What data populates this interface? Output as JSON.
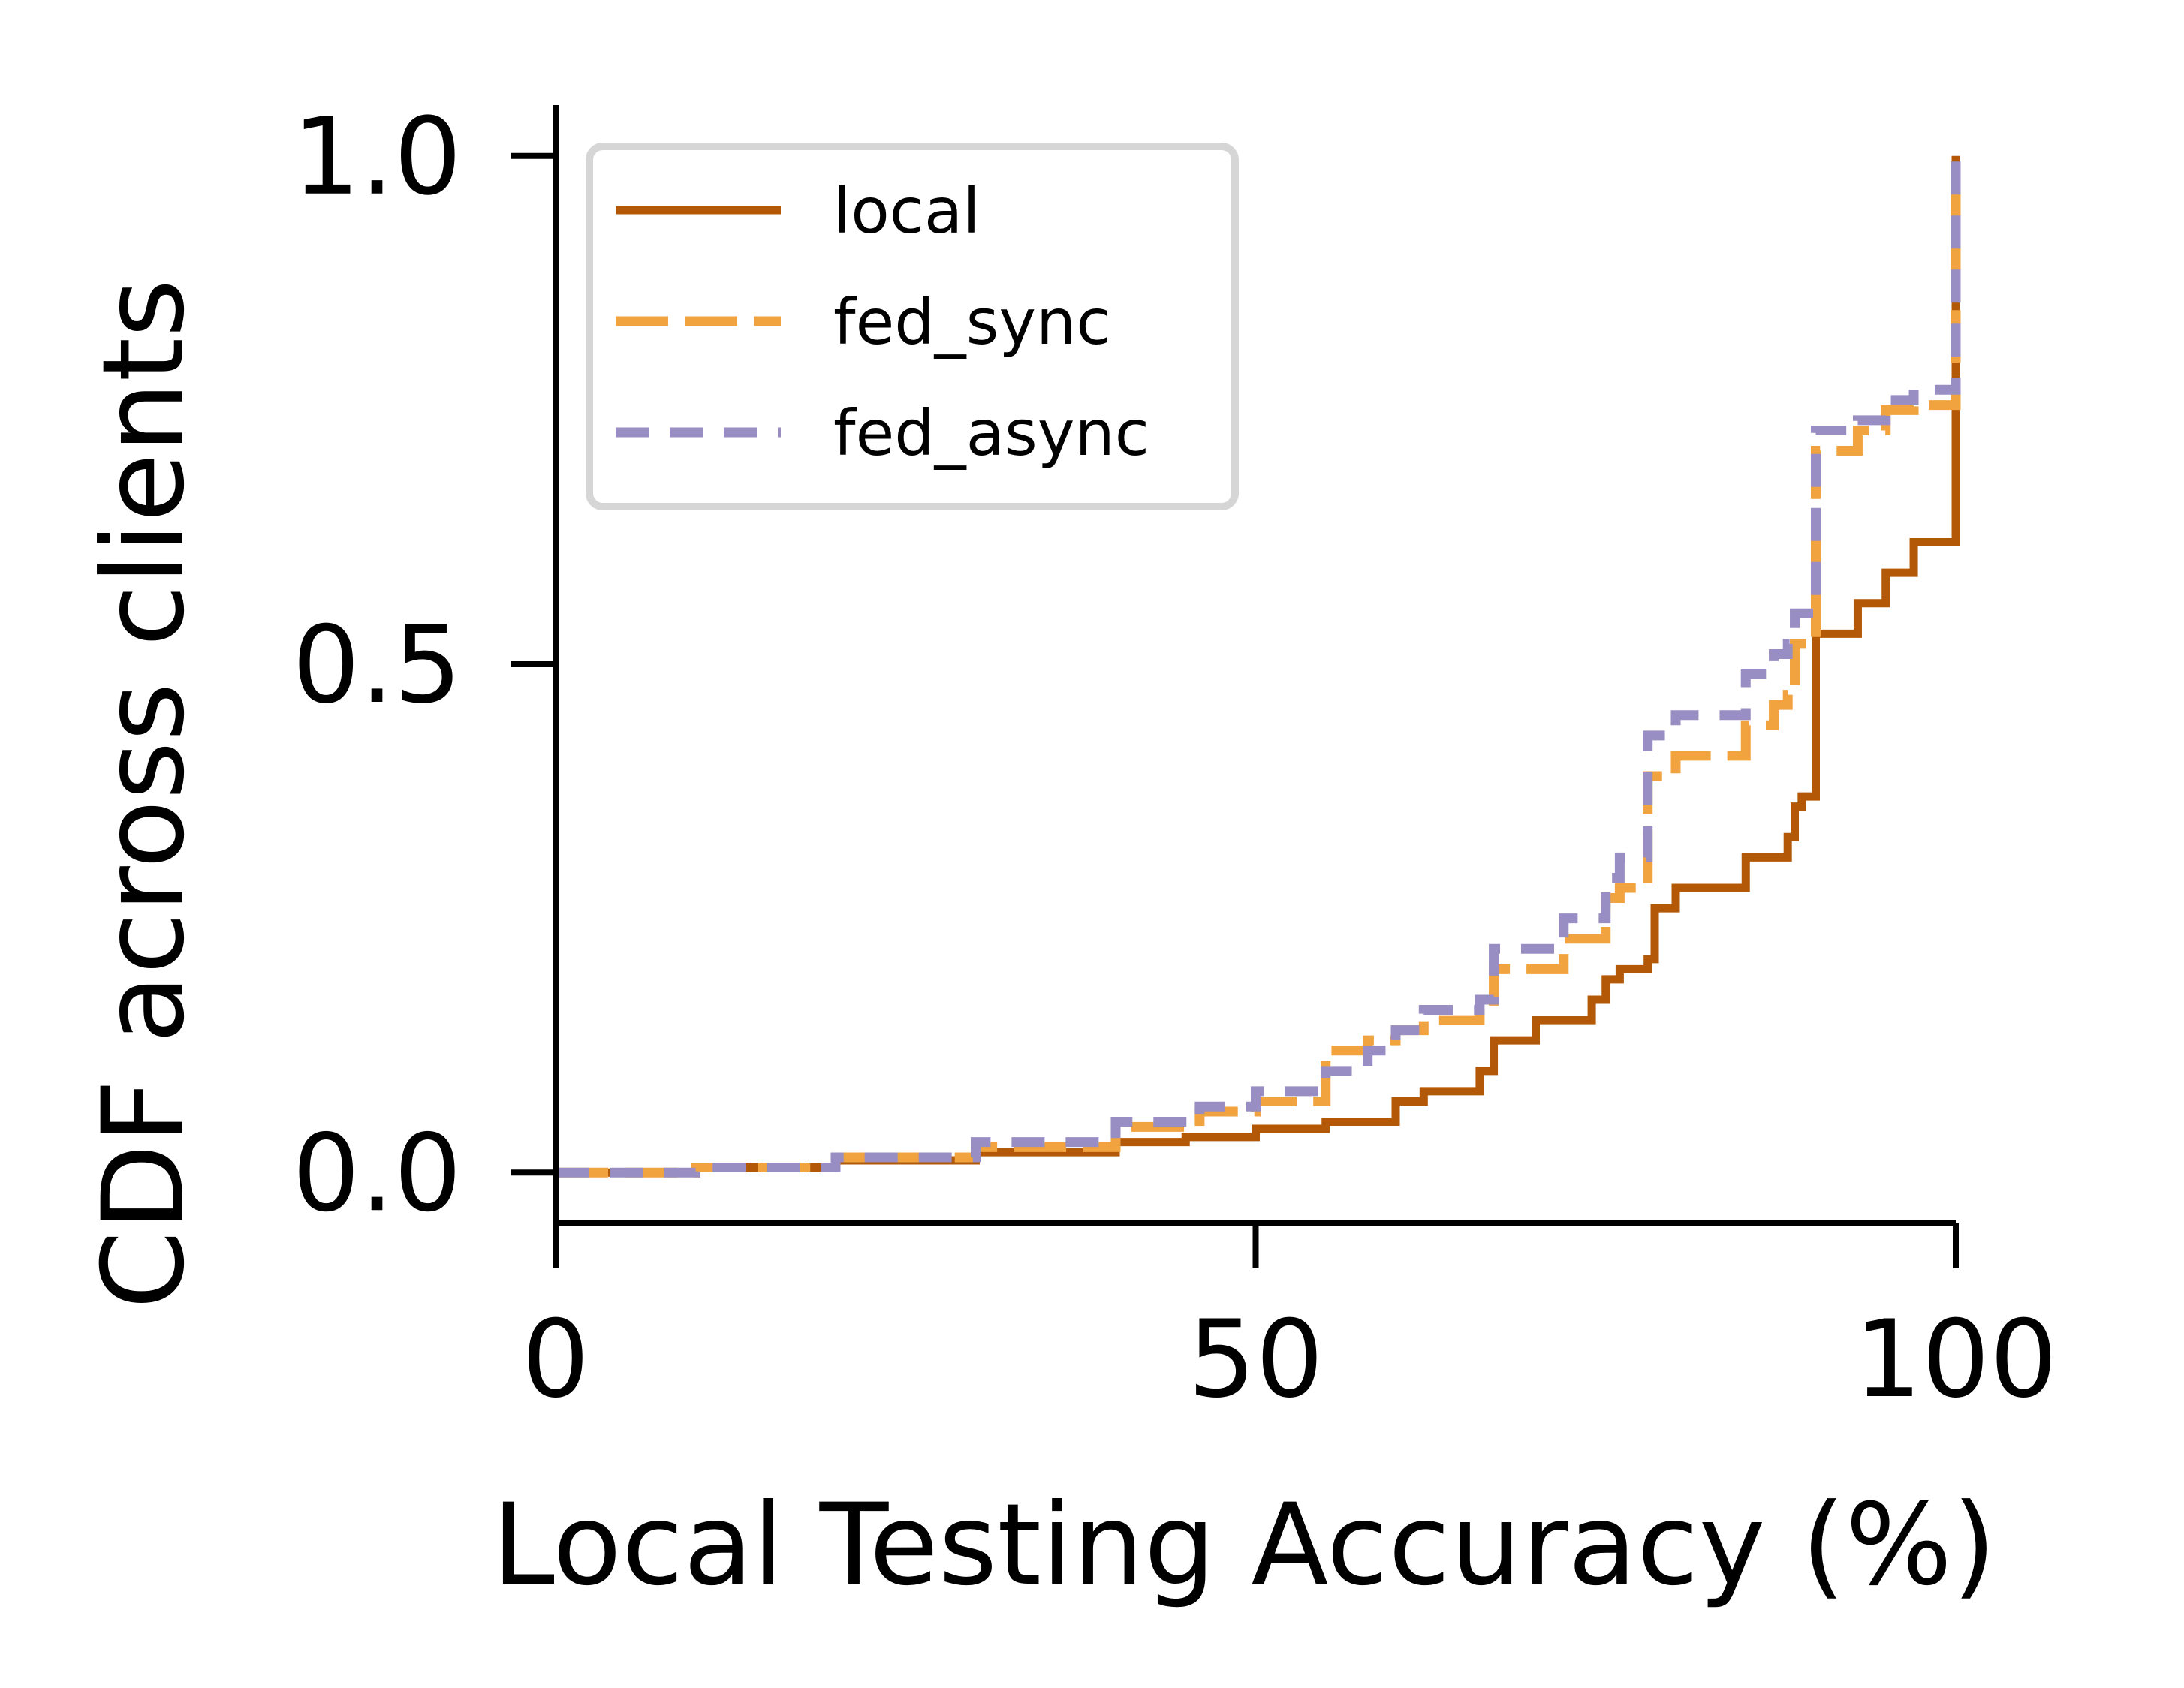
{
  "chart_data": {
    "type": "line",
    "xlabel": "Local Testing Accuracy (%)",
    "ylabel": "CDF across clients",
    "xlim": [
      0,
      100
    ],
    "ylim": [
      -0.05,
      1.05
    ],
    "xticks": [
      0,
      50,
      100
    ],
    "xtick_labels": [
      "0",
      "50",
      "100"
    ],
    "yticks": [
      0.0,
      0.5,
      1.0
    ],
    "ytick_labels": [
      "0.0",
      "0.5",
      "1.0"
    ],
    "grid": false,
    "legend_position": "top-left",
    "series": [
      {
        "name": "local",
        "color": "#b35806",
        "dash": "solid",
        "x": [
          0,
          10,
          20,
          30,
          40,
          45,
          50,
          55,
          60,
          62,
          66,
          67,
          70,
          74,
          75,
          76,
          78,
          78.5,
          80,
          85,
          88,
          88.5,
          89,
          90,
          93,
          95,
          97,
          100,
          100
        ],
        "y": [
          0,
          0.005,
          0.012,
          0.02,
          0.03,
          0.035,
          0.043,
          0.05,
          0.07,
          0.08,
          0.1,
          0.13,
          0.15,
          0.17,
          0.19,
          0.2,
          0.21,
          0.26,
          0.28,
          0.31,
          0.33,
          0.36,
          0.37,
          0.53,
          0.56,
          0.59,
          0.62,
          0.62,
          1.0
        ]
      },
      {
        "name": "fed_sync",
        "color": "#f1a340",
        "dash": "long-dash",
        "x": [
          0,
          10,
          20,
          30,
          40,
          46,
          50,
          55,
          58,
          60,
          62,
          66,
          67,
          72,
          75,
          76,
          78,
          80,
          85,
          87,
          88,
          88.5,
          89,
          90,
          93,
          95,
          97,
          100,
          100
        ],
        "y": [
          0,
          0.005,
          0.015,
          0.025,
          0.045,
          0.06,
          0.07,
          0.12,
          0.13,
          0.14,
          0.15,
          0.16,
          0.2,
          0.23,
          0.27,
          0.28,
          0.39,
          0.41,
          0.44,
          0.46,
          0.47,
          0.52,
          0.52,
          0.71,
          0.73,
          0.75,
          0.755,
          0.77,
          1.0
        ]
      },
      {
        "name": "fed_async",
        "color": "#998ec3",
        "dash": "dashed",
        "x": [
          0,
          10,
          20,
          30,
          40,
          46,
          50,
          55,
          58,
          60,
          62,
          66,
          67,
          72,
          75,
          76,
          78,
          80,
          85,
          87,
          88,
          88.5,
          89,
          90,
          93,
          95,
          97,
          100,
          100
        ],
        "y": [
          0,
          0.005,
          0.015,
          0.03,
          0.05,
          0.065,
          0.08,
          0.1,
          0.12,
          0.14,
          0.16,
          0.17,
          0.22,
          0.25,
          0.29,
          0.31,
          0.43,
          0.45,
          0.49,
          0.51,
          0.52,
          0.55,
          0.55,
          0.73,
          0.74,
          0.76,
          0.77,
          0.78,
          1.0
        ]
      }
    ]
  }
}
